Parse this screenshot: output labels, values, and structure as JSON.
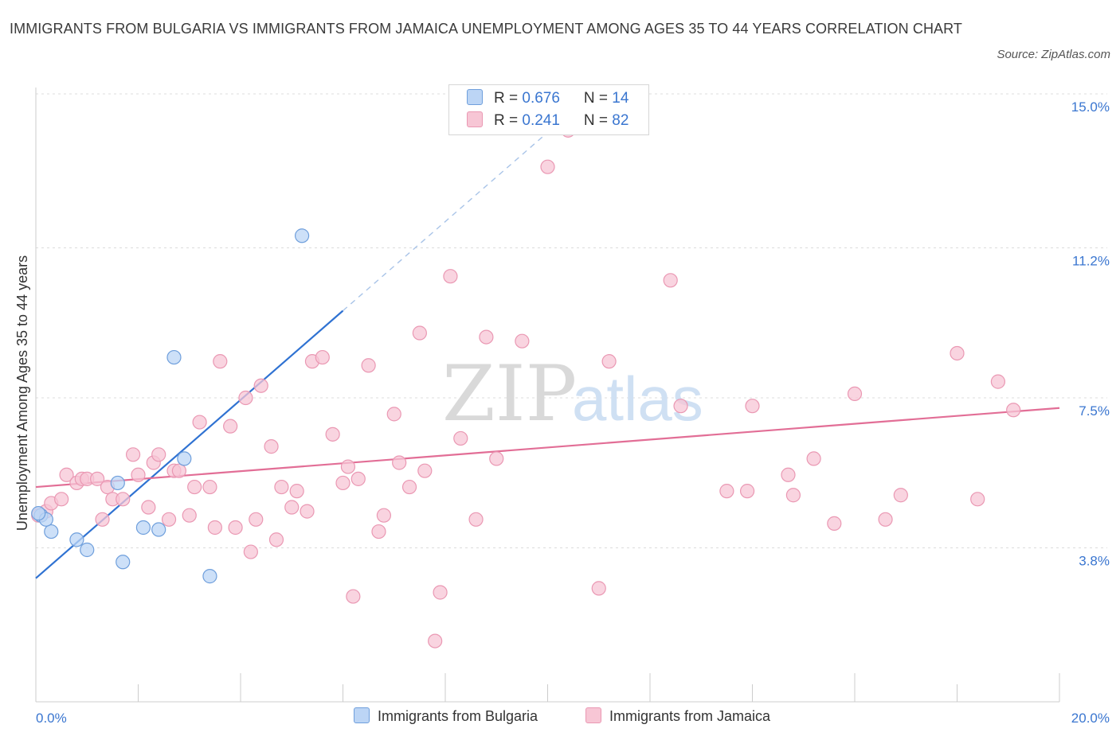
{
  "title": "IMMIGRANTS FROM BULGARIA VS IMMIGRANTS FROM JAMAICA UNEMPLOYMENT AMONG AGES 35 TO 44 YEARS CORRELATION CHART",
  "source": "Source: ZipAtlas.com",
  "watermark": {
    "zip": "ZIP",
    "atlas": "atlas"
  },
  "colors": {
    "bulgaria_fill": "#bcd5f5",
    "bulgaria_stroke": "#6f9fdc",
    "bulgaria_line": "#2f72d2",
    "jamaica_fill": "#f7c6d5",
    "jamaica_stroke": "#ea98b3",
    "jamaica_line": "#e26e96",
    "accent_text": "#3a76d0"
  },
  "legend": {
    "bulgaria": {
      "r_label": "R = ",
      "r_value": "0.676",
      "n_label": "N = ",
      "n_value": "14"
    },
    "jamaica": {
      "r_label": "R = ",
      "r_value": "0.241",
      "n_label": "N = ",
      "n_value": "82"
    }
  },
  "chart_data": {
    "type": "scatter",
    "title": "IMMIGRANTS FROM BULGARIA VS IMMIGRANTS FROM JAMAICA UNEMPLOYMENT AMONG AGES 35 TO 44 YEARS CORRELATION CHART",
    "xlabel": "",
    "ylabel": "Unemployment Among Ages 35 to 44 years",
    "xlim": [
      0,
      20
    ],
    "ylim": [
      0,
      15
    ],
    "x_tick_labels": [
      {
        "value": 0,
        "label": "0.0%"
      },
      {
        "value": 20,
        "label": "20.0%"
      }
    ],
    "y_tick_labels": [
      {
        "value": 3.8,
        "label": "3.8%"
      },
      {
        "value": 7.5,
        "label": "7.5%"
      },
      {
        "value": 11.2,
        "label": "11.2%"
      },
      {
        "value": 15.0,
        "label": "15.0%"
      }
    ],
    "x_minor_ticks": [
      2,
      4,
      6,
      8,
      10,
      12,
      14,
      16,
      18,
      20
    ],
    "grid": true,
    "series": [
      {
        "name": "Immigrants from Bulgaria",
        "key": "bulgaria",
        "points": [
          [
            0.1,
            4.6
          ],
          [
            0.3,
            4.2
          ],
          [
            0.8,
            4.0
          ],
          [
            1.0,
            3.75
          ],
          [
            1.6,
            5.4
          ],
          [
            1.7,
            3.45
          ],
          [
            2.1,
            4.3
          ],
          [
            2.4,
            4.25
          ],
          [
            2.7,
            8.5
          ],
          [
            2.9,
            6.0
          ],
          [
            3.4,
            3.1
          ],
          [
            5.2,
            11.5
          ],
          [
            0.2,
            4.5
          ],
          [
            0.05,
            4.65
          ]
        ],
        "trend": {
          "x": [
            0,
            6.0
          ],
          "y": [
            3.05,
            9.65
          ],
          "dashed_to": [
            10.5,
            14.6
          ]
        }
      },
      {
        "name": "Immigrants from Jamaica",
        "key": "jamaica",
        "points": [
          [
            0.05,
            4.6
          ],
          [
            0.2,
            4.7
          ],
          [
            0.3,
            4.9
          ],
          [
            0.5,
            5.0
          ],
          [
            0.6,
            5.6
          ],
          [
            0.8,
            5.4
          ],
          [
            0.9,
            5.5
          ],
          [
            1.0,
            5.5
          ],
          [
            1.2,
            5.5
          ],
          [
            1.3,
            4.5
          ],
          [
            1.4,
            5.3
          ],
          [
            1.5,
            5.0
          ],
          [
            1.7,
            5.0
          ],
          [
            1.9,
            6.1
          ],
          [
            2.0,
            5.6
          ],
          [
            2.2,
            4.8
          ],
          [
            2.3,
            5.9
          ],
          [
            2.4,
            6.1
          ],
          [
            2.6,
            4.5
          ],
          [
            2.7,
            5.7
          ],
          [
            2.8,
            5.7
          ],
          [
            3.0,
            4.6
          ],
          [
            3.1,
            5.3
          ],
          [
            3.2,
            6.9
          ],
          [
            3.4,
            5.3
          ],
          [
            3.5,
            4.3
          ],
          [
            3.6,
            8.4
          ],
          [
            3.8,
            6.8
          ],
          [
            3.9,
            4.3
          ],
          [
            4.1,
            7.5
          ],
          [
            4.2,
            3.7
          ],
          [
            4.3,
            4.5
          ],
          [
            4.4,
            7.8
          ],
          [
            4.6,
            6.3
          ],
          [
            4.7,
            4.0
          ],
          [
            4.8,
            5.3
          ],
          [
            5.0,
            4.8
          ],
          [
            5.1,
            5.2
          ],
          [
            5.3,
            4.7
          ],
          [
            5.4,
            8.4
          ],
          [
            5.6,
            8.5
          ],
          [
            5.8,
            6.6
          ],
          [
            6.0,
            5.4
          ],
          [
            6.1,
            5.8
          ],
          [
            6.2,
            2.6
          ],
          [
            6.3,
            5.5
          ],
          [
            6.5,
            8.3
          ],
          [
            6.7,
            4.2
          ],
          [
            6.8,
            4.6
          ],
          [
            7.0,
            7.1
          ],
          [
            7.1,
            5.9
          ],
          [
            7.3,
            5.3
          ],
          [
            7.5,
            9.1
          ],
          [
            7.6,
            5.7
          ],
          [
            7.8,
            1.5
          ],
          [
            7.9,
            2.7
          ],
          [
            8.1,
            10.5
          ],
          [
            8.3,
            6.5
          ],
          [
            8.6,
            4.5
          ],
          [
            8.8,
            9.0
          ],
          [
            9.0,
            6.0
          ],
          [
            9.5,
            8.9
          ],
          [
            10.0,
            13.2
          ],
          [
            10.4,
            14.1
          ],
          [
            11.0,
            2.8
          ],
          [
            11.2,
            8.4
          ],
          [
            12.4,
            10.4
          ],
          [
            12.6,
            7.3
          ],
          [
            13.5,
            5.2
          ],
          [
            13.9,
            5.2
          ],
          [
            14.0,
            7.3
          ],
          [
            14.7,
            5.6
          ],
          [
            14.8,
            5.1
          ],
          [
            15.2,
            6.0
          ],
          [
            15.6,
            4.4
          ],
          [
            16.0,
            7.6
          ],
          [
            16.6,
            4.5
          ],
          [
            16.9,
            5.1
          ],
          [
            18.0,
            8.6
          ],
          [
            18.4,
            5.0
          ],
          [
            18.8,
            7.9
          ],
          [
            19.1,
            7.2
          ]
        ],
        "trend": {
          "x": [
            0,
            20
          ],
          "y": [
            5.3,
            7.25
          ]
        }
      }
    ],
    "legend_position": "top-center"
  }
}
